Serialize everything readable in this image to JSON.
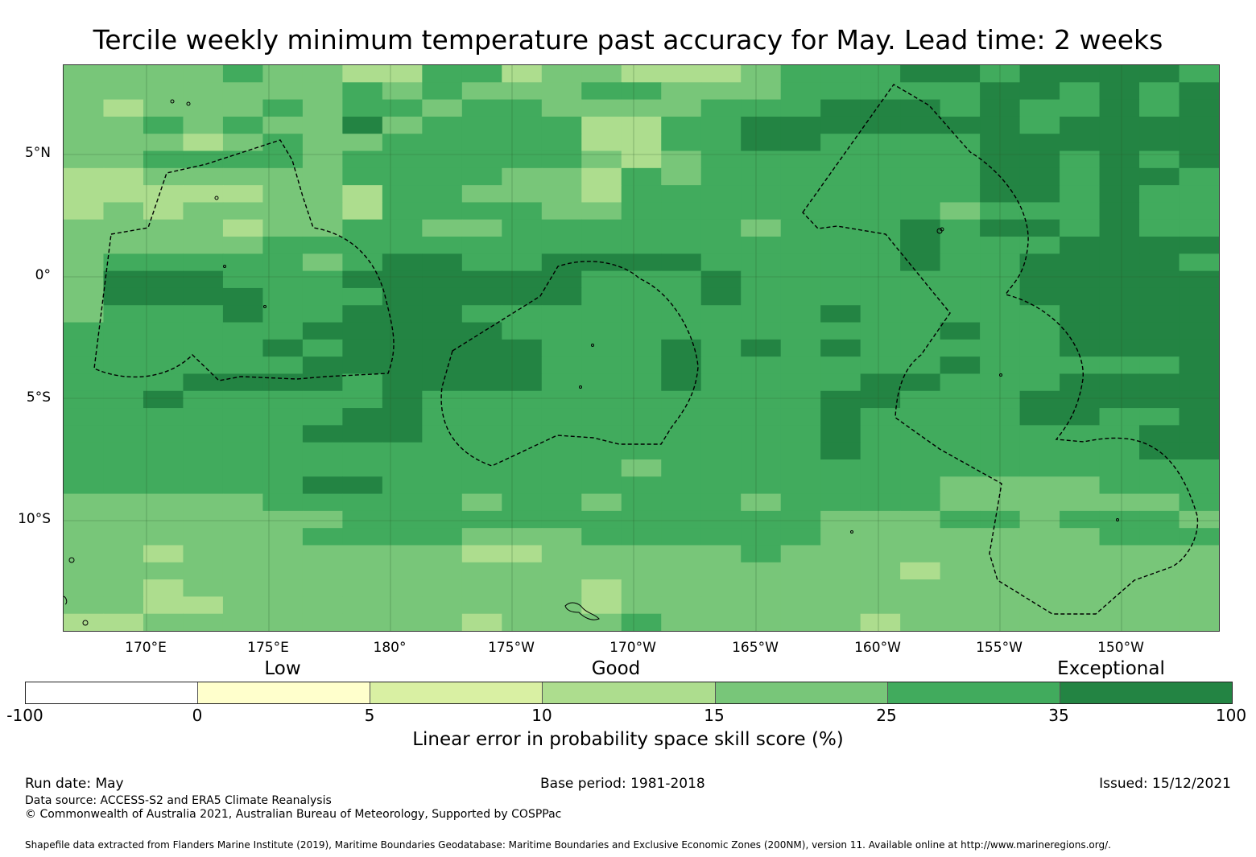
{
  "title": "Tercile weekly minimum temperature past accuracy for May. Lead time: 2 weeks",
  "map": {
    "lat_labels": [
      "5°N",
      "0°",
      "5°S",
      "10°S"
    ],
    "lon_labels": [
      "170°E",
      "175°E",
      "180°",
      "175°W",
      "170°W",
      "165°W",
      "160°W",
      "155°W",
      "150°W"
    ],
    "grid_rows": [
      "44445443355344333455566566665",
      "44444445454445544455555665656",
      "43444545545544445556665655656",
      "44545446455553355666666656666",
      "44434544555553355665555666666",
      "44555545555554345555555665656",
      "33444445555443545555555665665",
      "33333443554443555555555665655",
      "34344443555544555555554555655",
      "44443445544555555455565665655",
      "44444555555555555555565556666",
      "45555545665566665555565566665",
      "46665556666665556555555566666",
      "46666555666665556555555566666",
      "45556556665555555556555556666",
      "55555566666555555555556556666",
      "55555656666655565656555556666",
      "55555566666655565555556555556",
      "55566665666655565555665556666",
      "55655555655555555556655566666",
      "55555556655555555556555566556",
      "55555566655555555556555555566",
      "55555555555555555556555555566",
      "55555555555555455555555555555",
      "55555566555555555555554444555",
      "44444555554554555455554444445",
      "44444445555555555554445545554",
      "44444455554445555554444444555",
      "44344444443344444544444444444",
      "44444444444444444444434444444",
      "44344444444443444444444444444",
      "44334444444443444444444444444",
      "33444444443444544444344444444"
    ],
    "palette": [
      "#ffffff",
      "#ffffcc",
      "#d9f0a3",
      "#addd8e",
      "#78c679",
      "#41ab5d",
      "#238443"
    ]
  },
  "category_labels": [
    "Low",
    "Good",
    "Exceptional"
  ],
  "colorbar": {
    "ticks": [
      "-100",
      "0",
      "5",
      "10",
      "15",
      "25",
      "35",
      "100"
    ],
    "colors": [
      "#ffffff",
      "#ffffcc",
      "#d9f0a3",
      "#addd8e",
      "#78c679",
      "#41ab5d",
      "#238443"
    ],
    "label": "Linear error in probability space skill score (%)"
  },
  "footer": {
    "run_date": "Run date: May",
    "base_period": "Base period: 1981-2018",
    "issued": "Issued: 15/12/2021",
    "data_source": "Data source: ACCESS-S2 and ERA5 Climate Reanalysis",
    "copyright": "© Commonwealth of Australia 2021, Australian Bureau of Meteorology, Supported by COSPPac",
    "shapefile": "Shapefile data extracted from Flanders Marine Institute (2019), Maritime Boundaries Geodatabase: Maritime Boundaries and Exclusive Economic Zones (200NM), version 11. Available online at http://www.marineregions.org/."
  }
}
